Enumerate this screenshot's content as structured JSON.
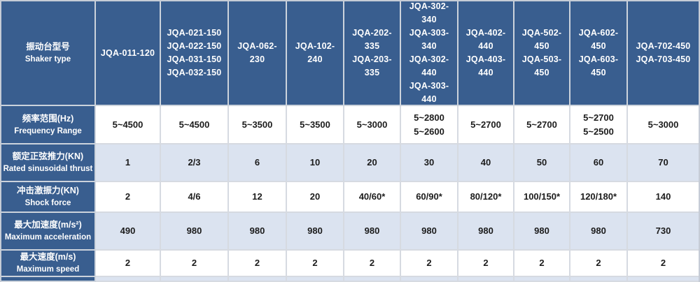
{
  "colors": {
    "header_blue": "#395e8f",
    "row_alt_blue": "#dbe3f0",
    "row_white": "#ffffff",
    "grid_line": "#d6dae1",
    "outer_border": "#c6ccd6",
    "header_text": "#ffffff",
    "data_text": "#1c1c1c"
  },
  "table": {
    "corner": {
      "zh": "振动台型号",
      "en": "Shaker type"
    },
    "header_columns": [
      "JQA-011-120",
      "JQA-021-150\nJQA-022-150\nJQA-031-150\nJQA-032-150",
      "JQA-062-230",
      "JQA-102-240",
      "JQA-202-335\nJQA-203-335",
      "JQA-302-340\nJQA-303-340\nJQA-302-440\nJQA-303-440",
      "JQA-402-440\nJQA-403-440",
      "JQA-502-450\nJQA-503-450",
      "JQA-602-450\nJQA-603-450",
      "JQA-702-450\nJQA-703-450"
    ],
    "rows": [
      {
        "zh": "频率范围(Hz)",
        "en": "Frequency Range",
        "shade": "white",
        "values": [
          "5~4500",
          "5~4500",
          "5~3500",
          "5~3500",
          "5~3000",
          "5~2800\n5~2600",
          "5~2700",
          "5~2700",
          "5~2700\n5~2500",
          "5~3000"
        ]
      },
      {
        "zh": "额定正弦推力(KN)",
        "en": "Rated sinusoidal thrust",
        "shade": "alt",
        "values": [
          "1",
          "2/3",
          "6",
          "10",
          "20",
          "30",
          "40",
          "50",
          "60",
          "70"
        ]
      },
      {
        "zh": "冲击激振力(KN)",
        "en": "Shock force",
        "shade": "white",
        "values": [
          "2",
          "4/6",
          "12",
          "20",
          "40/60*",
          "60/90*",
          "80/120*",
          "100/150*",
          "120/180*",
          "140"
        ]
      },
      {
        "zh": "最大加速度(m/s²)",
        "en": "Maximum acceleration",
        "shade": "alt",
        "values": [
          "490",
          "980",
          "980",
          "980",
          "980",
          "980",
          "980",
          "980",
          "980",
          "730"
        ]
      },
      {
        "zh": "最大速度(m/s)",
        "en": "Maximum speed",
        "shade": "white",
        "values": [
          "2",
          "2",
          "2",
          "2",
          "2",
          "2",
          "2",
          "2",
          "2",
          "2"
        ]
      }
    ],
    "partial_row": {
      "shade": "alt",
      "values": [
        "",
        "",
        "",
        "",
        "",
        "",
        "",
        "",
        "",
        ""
      ]
    }
  }
}
